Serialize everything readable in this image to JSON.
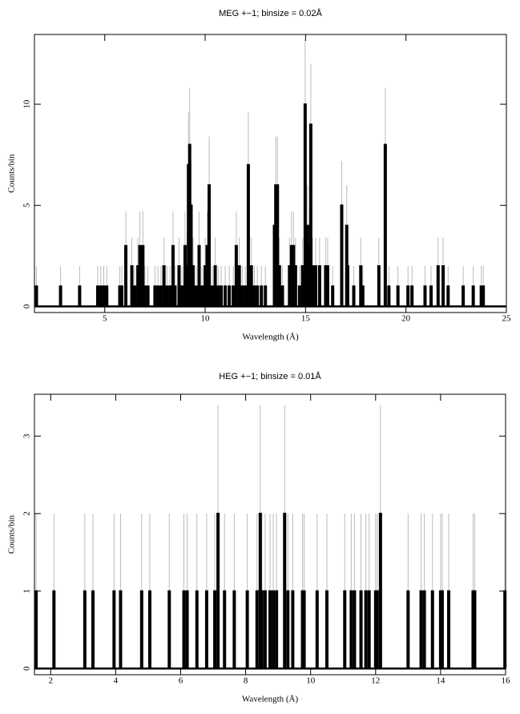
{
  "chart_data": [
    {
      "type": "spike",
      "title": "MEG +−1; binsize = 0.02Å",
      "xlabel": "Wavelength (Å)",
      "ylabel": "Counts/bin",
      "xlim": [
        1.5,
        25
      ],
      "ylim": [
        -0.3,
        13.45
      ],
      "xticks": [
        5,
        10,
        15,
        20,
        25
      ],
      "yticks": [
        0,
        5,
        10
      ],
      "color": "#000000",
      "error_color": "#bbbbbb",
      "x": [
        1.6,
        2.8,
        3.75,
        4.65,
        4.8,
        4.95,
        5.1,
        5.75,
        5.85,
        6.05,
        6.35,
        6.5,
        6.65,
        6.75,
        6.9,
        7.0,
        7.15,
        7.5,
        7.65,
        7.8,
        7.95,
        8.1,
        8.25,
        8.4,
        8.5,
        8.7,
        8.85,
        9.0,
        9.1,
        9.17,
        9.23,
        9.3,
        9.4,
        9.55,
        9.7,
        9.85,
        10.0,
        10.1,
        10.2,
        10.35,
        10.5,
        10.65,
        10.8,
        11.0,
        11.2,
        11.4,
        11.55,
        11.7,
        11.85,
        12.0,
        12.15,
        12.3,
        12.45,
        12.6,
        12.8,
        13.0,
        13.45,
        13.52,
        13.6,
        13.7,
        13.85,
        14.2,
        14.3,
        14.4,
        14.5,
        14.7,
        14.85,
        14.98,
        15.1,
        15.2,
        15.26,
        15.35,
        15.5,
        15.7,
        16.0,
        16.1,
        16.35,
        16.8,
        17.05,
        17.1,
        17.4,
        17.75,
        17.85,
        18.65,
        18.97,
        19.15,
        19.6,
        20.1,
        20.3,
        20.95,
        21.25,
        21.6,
        21.85,
        22.1,
        22.85,
        23.35,
        23.75,
        23.85
      ],
      "values": [
        1,
        1,
        1,
        1,
        1,
        1,
        1,
        1,
        1,
        3,
        2,
        1,
        2,
        3,
        3,
        1,
        1,
        1,
        1,
        1,
        2,
        1,
        1,
        3,
        1,
        2,
        1,
        3,
        2,
        7,
        8,
        5,
        2,
        1,
        3,
        1,
        2,
        3,
        6,
        1,
        2,
        1,
        1,
        1,
        1,
        1,
        3,
        2,
        1,
        1,
        7,
        2,
        1,
        1,
        1,
        1,
        4,
        6,
        6,
        2,
        1,
        2,
        3,
        3,
        2,
        1,
        2,
        10,
        4,
        3,
        9,
        2,
        2,
        2,
        2,
        2,
        1,
        5,
        4,
        2,
        1,
        2,
        1,
        2,
        8,
        1,
        1,
        1,
        1,
        1,
        1,
        2,
        2,
        1,
        1,
        1,
        1,
        1
      ],
      "errors": [
        1,
        1,
        1,
        1,
        1,
        1,
        1,
        1,
        1,
        1.7,
        1.4,
        1,
        1.4,
        1.7,
        1.7,
        1,
        1,
        1,
        1,
        1,
        1.4,
        1,
        1,
        1.7,
        1,
        1.4,
        1,
        1.7,
        1.4,
        2.6,
        2.8,
        2.2,
        1.4,
        1,
        1.7,
        1,
        1.4,
        1.7,
        2.4,
        1,
        1.4,
        1,
        1,
        1,
        1,
        1,
        1.7,
        1.4,
        1,
        1,
        2.6,
        1.4,
        1,
        1,
        1,
        1,
        2,
        2.4,
        2.4,
        1.4,
        1,
        1.4,
        1.7,
        1.7,
        1.4,
        1,
        1.4,
        3.2,
        2,
        1.7,
        3,
        1.4,
        1.4,
        1.4,
        1.4,
        1.4,
        1,
        2.2,
        2,
        1.4,
        1,
        1.4,
        1,
        1.4,
        2.8,
        1,
        1,
        1,
        1,
        1,
        1,
        1.4,
        1.4,
        1,
        1,
        1,
        1,
        1
      ]
    },
    {
      "type": "spike",
      "title": "HEG +−1; binsize = 0.01Å",
      "xlabel": "Wavelength (Å)",
      "ylabel": "Counts/bin",
      "xlim": [
        1.5,
        16
      ],
      "ylim": [
        -0.08,
        3.54
      ],
      "xticks": [
        2,
        4,
        6,
        8,
        10,
        12,
        14,
        16
      ],
      "yticks": [
        0,
        1,
        2,
        3
      ],
      "color": "#000000",
      "error_color": "#bbbbbb",
      "x": [
        1.55,
        2.1,
        3.05,
        3.3,
        3.95,
        4.15,
        4.8,
        5.05,
        5.65,
        6.1,
        6.2,
        6.5,
        6.8,
        7.05,
        7.15,
        7.35,
        7.65,
        8.05,
        8.35,
        8.45,
        8.5,
        8.6,
        8.75,
        8.85,
        8.95,
        9.2,
        9.3,
        9.45,
        9.75,
        9.8,
        10.2,
        10.5,
        11.05,
        11.25,
        11.35,
        11.55,
        11.7,
        11.8,
        12.0,
        12.05,
        12.15,
        13.0,
        13.4,
        13.5,
        13.75,
        14.0,
        14.05,
        14.25,
        15.0,
        15.05,
        15.98
      ],
      "values": [
        1,
        1,
        1,
        1,
        1,
        1,
        1,
        1,
        1,
        1,
        1,
        1,
        1,
        1,
        2,
        1,
        1,
        1,
        1,
        2,
        1,
        1,
        1,
        1,
        1,
        2,
        1,
        1,
        1,
        1,
        1,
        1,
        1,
        1,
        1,
        1,
        1,
        1,
        1,
        1,
        2,
        1,
        1,
        1,
        1,
        1,
        1,
        1,
        1,
        1,
        1
      ],
      "errors": [
        1,
        1,
        1,
        1,
        1,
        1,
        1,
        1,
        1,
        1,
        1,
        1,
        1,
        1,
        1.4,
        1,
        1,
        1,
        1,
        1.4,
        1,
        1,
        1,
        1,
        1,
        1.4,
        1,
        1,
        1,
        1,
        1,
        1,
        1,
        1,
        1,
        1,
        1,
        1,
        1,
        1,
        1.4,
        1,
        1,
        1,
        1,
        1,
        1,
        1,
        1,
        1,
        1
      ]
    }
  ]
}
